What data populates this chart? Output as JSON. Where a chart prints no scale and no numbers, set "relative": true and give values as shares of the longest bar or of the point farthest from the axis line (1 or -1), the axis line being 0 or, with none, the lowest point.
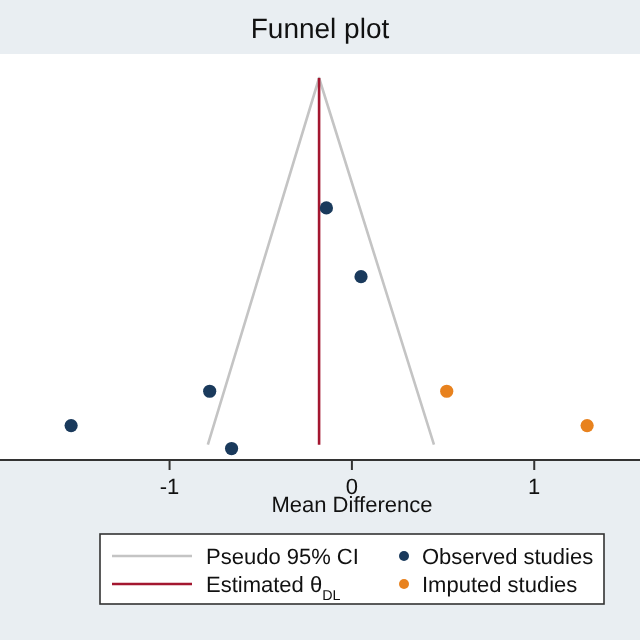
{
  "chart_data": {
    "type": "scatter",
    "title": "Funnel plot",
    "xlabel": "Mean Difference",
    "relative": true,
    "xlim": [
      -1.93,
      1.58
    ],
    "xticks": [
      -1,
      0,
      1
    ],
    "tick_labels": "x",
    "legend": "bottom",
    "marker": "circle",
    "series": [
      {
        "name": "Pseudo 95% CI",
        "type": "line",
        "marker": "none",
        "color": "#c4c4c4",
        "x": [
          -0.79,
          -0.18,
          0.45
        ],
        "values": [
          0.04,
          1,
          0.04
        ]
      },
      {
        "name": "Estimated θ$_{DL}$",
        "type": "line",
        "marker": "none",
        "color": "#a3162f",
        "x": [
          -0.18,
          -0.18
        ],
        "values": [
          0.04,
          1
        ]
      },
      {
        "name": "Observed studies",
        "color": "#1a3a5c",
        "x": [
          -0.14,
          0.05,
          -0.78,
          -1.54,
          -0.66
        ],
        "values": [
          0.66,
          0.48,
          0.18,
          0.09,
          0.03
        ]
      },
      {
        "name": "Imputed studies",
        "color": "#e8821e",
        "x": [
          0.52,
          1.29
        ],
        "values": [
          0.18,
          0.09
        ]
      }
    ]
  }
}
